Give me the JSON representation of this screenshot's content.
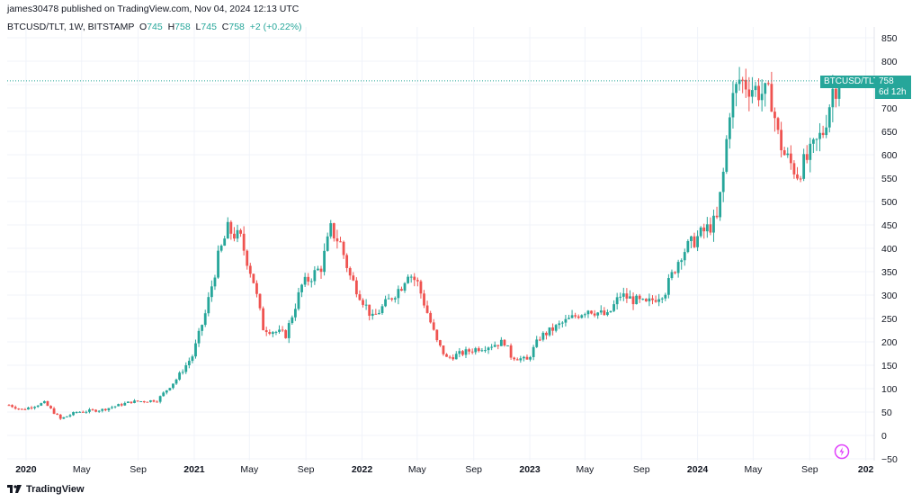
{
  "header": {
    "published": "james30478 published on TradingView.com, Nov 04, 2024 12:13 UTC"
  },
  "legend": {
    "symbol": "BTCUSD/TLT, 1W, BITSTAMP",
    "o_key": "O",
    "o_val": "745",
    "h_key": "H",
    "h_val": "758",
    "l_key": "L",
    "l_val": "745",
    "c_key": "C",
    "c_val": "758",
    "change": "+2 (+0.22%)"
  },
  "price_label": {
    "symbol": "BTCUSD/TLT",
    "price": "758",
    "countdown": "6d 12h"
  },
  "footer": {
    "brand": "TradingView"
  },
  "colors": {
    "up": "#26a69a",
    "down": "#ef5350",
    "grid": "#f0f3fa",
    "axis_text": "#131722",
    "price_line": "#26a69a"
  },
  "icons": [
    "tradingview-logo-icon",
    "snapshot-icon"
  ],
  "chart_data": {
    "type": "candlestick",
    "title": "",
    "xlabel": "",
    "ylabel": "",
    "ylim": [
      -50,
      850
    ],
    "grid": true,
    "y_ticks": [
      "850",
      "800",
      "750",
      "700",
      "650",
      "600",
      "550",
      "500",
      "450",
      "400",
      "350",
      "300",
      "250",
      "200",
      "150",
      "100",
      "50",
      "0",
      "−50"
    ],
    "x_ticks": [
      "2020",
      "May",
      "Sep",
      "2021",
      "May",
      "Sep",
      "2022",
      "May",
      "Sep",
      "2023",
      "May",
      "Sep",
      "2024",
      "May",
      "Sep",
      "202"
    ],
    "last_price": 758,
    "anchors": [
      [
        "2019-11-25",
        65
      ],
      [
        "2019-12-23",
        55
      ],
      [
        "2020-02-10",
        70
      ],
      [
        "2020-03-16",
        35
      ],
      [
        "2020-04-20",
        50
      ],
      [
        "2020-06-15",
        55
      ],
      [
        "2020-08-17",
        72
      ],
      [
        "2020-10-12",
        75
      ],
      [
        "2020-11-23",
        120
      ],
      [
        "2020-12-28",
        170
      ],
      [
        "2021-01-25",
        260
      ],
      [
        "2021-02-22",
        380
      ],
      [
        "2021-03-15",
        440
      ],
      [
        "2021-04-12",
        420
      ],
      [
        "2021-05-10",
        330
      ],
      [
        "2021-05-31",
        230
      ],
      [
        "2021-07-19",
        215
      ],
      [
        "2021-08-23",
        320
      ],
      [
        "2021-10-04",
        360
      ],
      [
        "2021-10-25",
        440
      ],
      [
        "2021-11-15",
        410
      ],
      [
        "2021-12-06",
        340
      ],
      [
        "2022-01-24",
        250
      ],
      [
        "2022-03-28",
        320
      ],
      [
        "2022-04-11",
        350
      ],
      [
        "2022-05-02",
        325
      ],
      [
        "2022-06-13",
        200
      ],
      [
        "2022-07-04",
        165
      ],
      [
        "2022-09-05",
        185
      ],
      [
        "2022-11-07",
        200
      ],
      [
        "2022-11-21",
        170
      ],
      [
        "2022-12-26",
        160
      ],
      [
        "2023-01-23",
        210
      ],
      [
        "2023-03-13",
        240
      ],
      [
        "2023-05-08",
        270
      ],
      [
        "2023-06-19",
        255
      ],
      [
        "2023-07-17",
        300
      ],
      [
        "2023-09-11",
        280
      ],
      [
        "2023-10-23",
        310
      ],
      [
        "2023-11-27",
        390
      ],
      [
        "2024-01-08",
        430
      ],
      [
        "2024-02-12",
        460
      ],
      [
        "2024-02-26",
        560
      ],
      [
        "2024-03-11",
        700
      ],
      [
        "2024-04-01",
        760
      ],
      [
        "2024-05-06",
        740
      ],
      [
        "2024-06-10",
        720
      ],
      [
        "2024-06-24",
        640
      ],
      [
        "2024-07-08",
        600
      ],
      [
        "2024-08-05",
        560
      ],
      [
        "2024-09-02",
        600
      ],
      [
        "2024-09-30",
        650
      ],
      [
        "2024-10-21",
        740
      ],
      [
        "2024-11-04",
        758
      ]
    ]
  }
}
